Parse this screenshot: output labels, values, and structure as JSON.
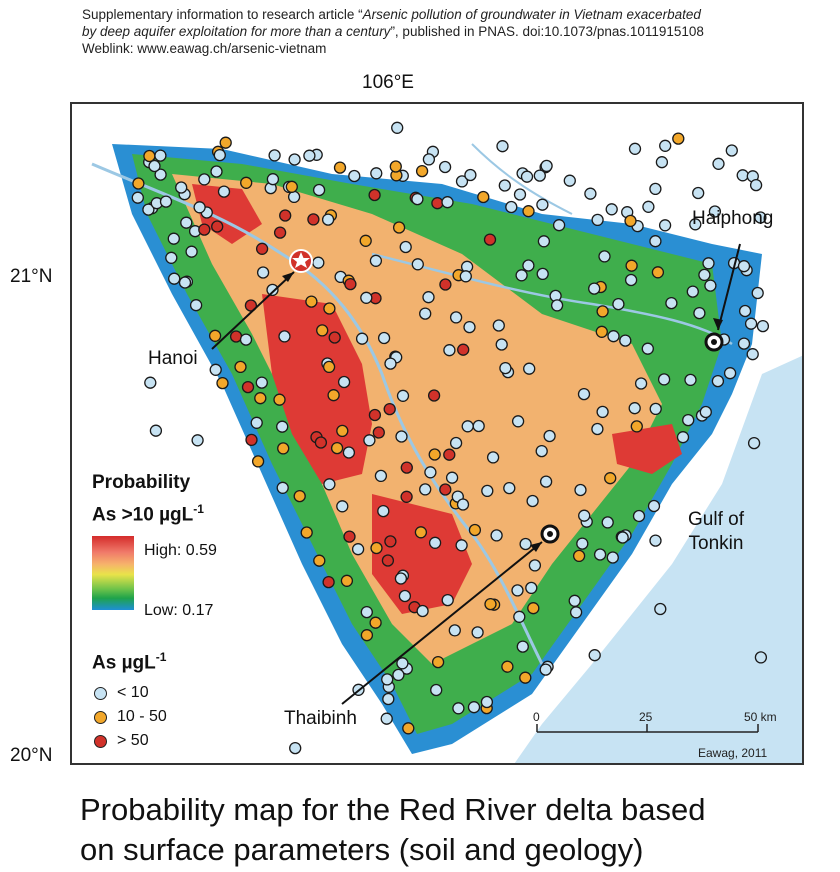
{
  "header": {
    "line1_prefix": "Supplementary information to research article “",
    "line1_title": "Arsenic pollution of groundwater in Vietnam exacerbated",
    "line2_title": "by deep aquifer exploitation for more than a century",
    "line2_suffix": "”, published in PNAS. doi:10.1073/pnas.1011915108",
    "line3": "Weblink: www.eawag.ch/arsenic-vietnam"
  },
  "coordinates": {
    "top_longitude": "106°E",
    "lat_21": "21°N",
    "lat_20": "20°N"
  },
  "legend": {
    "probability_title_line1": "Probability",
    "probability_title_line2_main": "As >10 µgL",
    "probability_title_line2_sup": "-1",
    "high_label": "High:  0.59",
    "low_label": "Low:  0.17",
    "as_title_main": "As µgL",
    "as_title_sup": "-1",
    "classes": [
      {
        "label": "< 10",
        "color": "#c7e3f3"
      },
      {
        "label": "10 - 50",
        "color": "#f2a72a"
      },
      {
        "label": "> 50",
        "color": "#d1322a"
      }
    ]
  },
  "places": {
    "hanoi": "Hanoi",
    "haiphong": "Haiphong",
    "thaibinh": "Thaibinh"
  },
  "gulf": {
    "line1": "Gulf of",
    "line2": "Tonkin"
  },
  "scale": {
    "tick0": "0",
    "tick25": "25",
    "tick50": "50 km"
  },
  "credit": "Eawag, 2011",
  "caption": {
    "line1": "Probability map for the Red River delta based",
    "line2": "on surface parameters (soil and geology)"
  },
  "colors": {
    "high": "#de3a35",
    "orange": "#f2b26f",
    "green": "#3fae4c",
    "blue": "#2a8fd3",
    "sea": "#c7e3f3",
    "river": "#9cc8e4"
  }
}
